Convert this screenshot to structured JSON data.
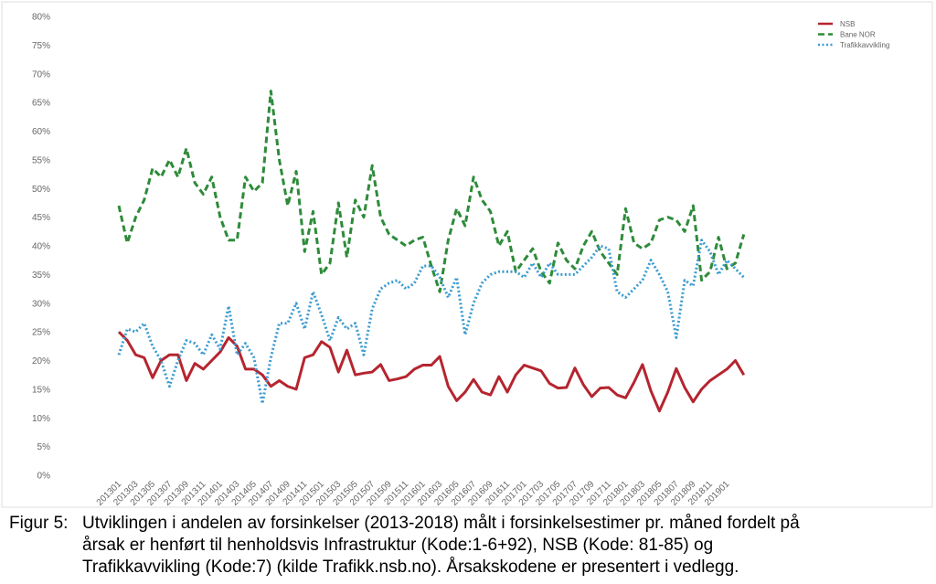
{
  "chart_data": {
    "type": "line",
    "categories": [
      "201301",
      null,
      "201303",
      null,
      "201305",
      null,
      "201307",
      null,
      "201309",
      null,
      "201311",
      null,
      "201401",
      null,
      "201403",
      null,
      "201405",
      null,
      "201407",
      null,
      "201409",
      null,
      "201411",
      null,
      "201501",
      null,
      "201503",
      null,
      "201505",
      null,
      "201507",
      null,
      "201509",
      null,
      "201511",
      null,
      "201601",
      null,
      "201603",
      null,
      "201605",
      null,
      "201607",
      null,
      "201609",
      null,
      "201611",
      null,
      "201701",
      null,
      "201703",
      null,
      "201705",
      null,
      "201707",
      null,
      "201709",
      null,
      "201711",
      null,
      "201801",
      null,
      "201803",
      null,
      "201805",
      null,
      "201807",
      null,
      "201809",
      null,
      "201811",
      null,
      "201901",
      null,
      null
    ],
    "series": [
      {
        "name": "NSB",
        "color": "#b5252f",
        "style": "solid",
        "values": [
          25,
          23.5,
          21,
          20.5,
          17,
          20,
          21,
          21,
          16.5,
          19.5,
          18.5,
          20,
          21.5,
          24,
          22.5,
          18.5,
          18.5,
          17.5,
          15.5,
          16.5,
          15.5,
          15,
          20.5,
          21,
          23.3,
          22.3,
          18,
          21.8,
          17.5,
          17.8,
          18,
          19.3,
          16.5,
          16.8,
          17.2,
          18.5,
          19.2,
          19.2,
          20.7,
          15.5,
          13,
          14.5,
          16.7,
          14.5,
          14,
          17.2,
          14.5,
          17.5,
          19.2,
          18.7,
          18.2,
          16,
          15.2,
          15.3,
          18.7,
          15.8,
          13.7,
          15.2,
          15.3,
          14,
          13.5,
          16.2,
          19.3,
          14.7,
          11.2,
          14.5,
          18.6,
          15.3,
          12.8,
          15,
          16.5,
          17.5,
          18.5,
          20,
          17.5
        ]
      },
      {
        "name": "Bane NOR",
        "color": "#2e8b3a",
        "style": "dashed",
        "values": [
          47,
          40.5,
          45,
          48,
          53.5,
          52,
          55,
          52,
          57,
          51,
          49,
          52,
          45,
          41,
          41,
          52,
          49.5,
          51,
          67,
          55,
          47,
          53,
          39,
          46,
          35,
          37,
          47.5,
          38,
          48,
          45,
          54,
          45,
          42,
          41,
          40,
          41,
          41.5,
          36.5,
          32,
          41,
          46.5,
          43.5,
          52,
          48,
          46,
          40,
          42.5,
          35.5,
          37.5,
          39.5,
          35.5,
          33.5,
          40.5,
          37.5,
          36,
          40,
          42.5,
          39,
          37,
          35,
          46.5,
          40.5,
          39.5,
          40.5,
          44.5,
          45,
          44.5,
          42.5,
          47,
          34,
          35.5,
          41.5,
          36,
          37,
          42
        ]
      },
      {
        "name": "Trafikkavvikling",
        "color": "#3a9bd0",
        "style": "dotted",
        "values": [
          21,
          25.5,
          25,
          26.5,
          22.5,
          20,
          15.5,
          20,
          23.5,
          23,
          21,
          24.5,
          22,
          29.5,
          21,
          23,
          20.5,
          12.5,
          20.5,
          26.5,
          26.5,
          30,
          25.5,
          32,
          28,
          23.5,
          27.5,
          25.5,
          26.5,
          21,
          29,
          32.5,
          33.5,
          34,
          32.5,
          33.5,
          36.5,
          36.5,
          34.5,
          31,
          34.5,
          24.5,
          30,
          33.5,
          35,
          35.5,
          35.5,
          35.5,
          34.5,
          37,
          34.5,
          37,
          35,
          35,
          35,
          36.5,
          38,
          40,
          39.5,
          32,
          31,
          32.5,
          34,
          37.5,
          35,
          32,
          24,
          34,
          33,
          41,
          39,
          35,
          37.5,
          36,
          34.5
        ]
      }
    ],
    "ylim": [
      0,
      80
    ],
    "yticks": [
      {
        "value": 0,
        "label": "0%"
      },
      {
        "value": 5,
        "label": "5%"
      },
      {
        "value": 10,
        "label": "10%"
      },
      {
        "value": 15,
        "label": "15%"
      },
      {
        "value": 20,
        "label": "20%"
      },
      {
        "value": 25,
        "label": "25%"
      },
      {
        "value": 30,
        "label": "30%"
      },
      {
        "value": 35,
        "label": "35%"
      },
      {
        "value": 40,
        "label": "40%"
      },
      {
        "value": 45,
        "label": "45%"
      },
      {
        "value": 50,
        "label": "50%"
      },
      {
        "value": 55,
        "label": "55%"
      },
      {
        "value": 60,
        "label": "60%"
      },
      {
        "value": 65,
        "label": "65%"
      },
      {
        "value": 70,
        "label": "70%"
      },
      {
        "value": 75,
        "label": "75%"
      },
      {
        "value": 80,
        "label": "80%"
      }
    ],
    "grid": false,
    "legend": "top-right"
  },
  "caption": {
    "label": "Figur 5:",
    "lines": [
      "Utviklingen i andelen av forsinkelser (2013-2018) målt i forsinkelsestimer pr. måned fordelt på",
      "årsak er henført til henholdsvis Infrastruktur (Kode:1-6+92), NSB (Kode: 81-85) og",
      "Trafikkavvikling (Kode:7) (kilde Trafikk.nsb.no). Årsakskodene er presentert i vedlegg."
    ]
  }
}
